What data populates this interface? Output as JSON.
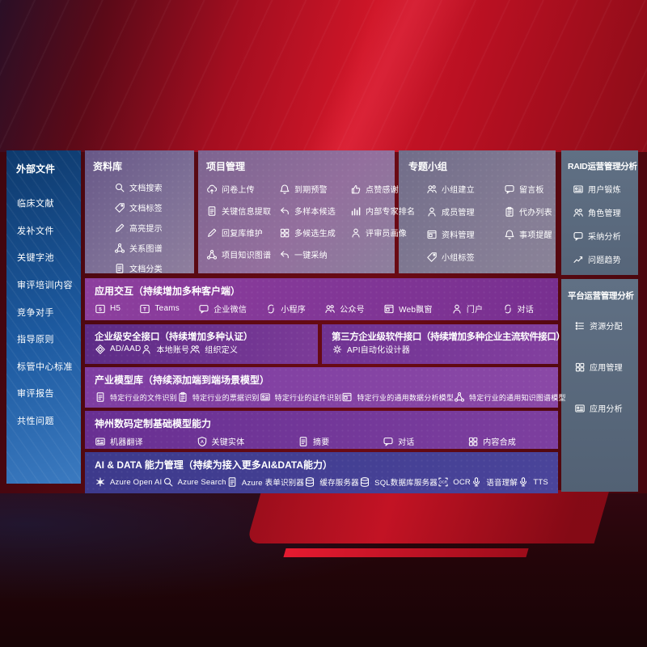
{
  "colors": {
    "background_red": "#c11226",
    "sidebar_blue": "#1d5aa0",
    "panel_mauve": "#7d6f96",
    "panel_slate": "#5d6d82",
    "panel_purple": "#7c3794",
    "panel_indigo": "#3f3b8e"
  },
  "sidebar": {
    "title": "外部文件",
    "items": [
      "临床文献",
      "发补文件",
      "关键字池",
      "审评培训内容",
      "竞争对手",
      "指导原则",
      "标管中心标准",
      "审评报告",
      "共性问题"
    ]
  },
  "panels": {
    "library": {
      "title": "资料库",
      "items": [
        {
          "label": "文档搜索",
          "icon": "doc-search-icon"
        },
        {
          "label": "文档标签",
          "icon": "tag-icon"
        },
        {
          "label": "高亮提示",
          "icon": "highlight-pen-icon"
        },
        {
          "label": "关系图谱",
          "icon": "relation-graph-icon"
        },
        {
          "label": "文档分类",
          "icon": "document-category-icon"
        }
      ]
    },
    "project": {
      "title": "项目管理",
      "items": [
        {
          "label": "问卷上传",
          "icon": "cloud-upload-icon"
        },
        {
          "label": "到期预警",
          "icon": "alarm-icon"
        },
        {
          "label": "点赞感谢",
          "icon": "thumbs-up-icon"
        },
        {
          "label": "关键信息提取",
          "icon": "key-info-extract-icon"
        },
        {
          "label": "多样本候选",
          "icon": "multi-sample-icon"
        },
        {
          "label": "内部专家排名",
          "icon": "expert-ranking-icon"
        },
        {
          "label": "回复库维护",
          "icon": "reply-library-icon"
        },
        {
          "label": "多候选生成",
          "icon": "multi-candidate-icon"
        },
        {
          "label": "评审员画像",
          "icon": "reviewer-profile-icon"
        },
        {
          "label": "项目知识图谱",
          "icon": "project-knowledge-graph-icon"
        },
        {
          "label": "一键采纳",
          "icon": "one-click-adopt-icon"
        }
      ]
    },
    "groups": {
      "title": "专题小组",
      "items": [
        {
          "label": "小组建立",
          "icon": "team-create-icon"
        },
        {
          "label": "留言板",
          "icon": "bbs-board-icon"
        },
        {
          "label": "成员管理",
          "icon": "member-manage-icon"
        },
        {
          "label": "代办列表",
          "icon": "todo-list-icon"
        },
        {
          "label": "资料管理",
          "icon": "material-manage-icon"
        },
        {
          "label": "事项提醒",
          "icon": "reminder-bell-icon"
        },
        {
          "label": "小组标签",
          "icon": "group-tag-icon"
        }
      ]
    },
    "raid": {
      "title": "RAID运营管理分析",
      "items": [
        {
          "label": "用户锻炼",
          "icon": "user-card-icon"
        },
        {
          "label": "角色管理",
          "icon": "role-manage-icon"
        },
        {
          "label": "采纳分析",
          "icon": "qa-analysis-icon"
        },
        {
          "label": "问题趋势",
          "icon": "issue-trend-icon"
        }
      ]
    },
    "platform": {
      "title": "平台运营管理分析",
      "items": [
        {
          "label": "资源分配",
          "icon": "resource-list-icon"
        },
        {
          "label": "应用管理",
          "icon": "app-grid-icon"
        },
        {
          "label": "应用分析",
          "icon": "app-report-icon"
        }
      ]
    },
    "interaction": {
      "title": "应用交互（持续增加多种客户端）",
      "items": [
        {
          "label": "H5",
          "icon": "h5-icon"
        },
        {
          "label": "Teams",
          "icon": "teams-icon"
        },
        {
          "label": "企业微信",
          "icon": "wechat-work-icon"
        },
        {
          "label": "小程序",
          "icon": "miniprogram-icon"
        },
        {
          "label": "公众号",
          "icon": "official-account-icon"
        },
        {
          "label": "Web飘窗",
          "icon": "web-popup-icon"
        },
        {
          "label": "门户",
          "icon": "portal-icon"
        },
        {
          "label": "对话",
          "icon": "dialog-icon"
        }
      ]
    },
    "security": {
      "title": "企业级安全接口（持续增加多种认证）",
      "items": [
        {
          "label": "AD/AAD",
          "icon": "azure-ad-icon"
        },
        {
          "label": "本地账号",
          "icon": "local-account-icon"
        },
        {
          "label": "组织定义",
          "icon": "org-define-icon"
        }
      ]
    },
    "thirdparty": {
      "title": "第三方企业级软件接口（持续增加多种企业主流软件接口）",
      "items": [
        {
          "label": "API自动化设计器",
          "icon": "api-designer-icon"
        }
      ]
    },
    "models": {
      "title": "产业模型库（持续添加端到端场景模型）",
      "items": [
        {
          "label": "特定行业的文件识别",
          "icon": "file-recognize-icon"
        },
        {
          "label": "特定行业的票据识别",
          "icon": "receipt-recognize-icon"
        },
        {
          "label": "特定行业的证件识别",
          "icon": "certificate-recognize-icon"
        },
        {
          "label": "特定行业的通用数据分析模型",
          "icon": "data-analysis-model-icon"
        },
        {
          "label": "特定行业的通用知识图谱模型",
          "icon": "knowledge-graph-model-icon"
        }
      ]
    },
    "foundation": {
      "title": "神州数码定制基础模型能力",
      "items": [
        {
          "label": "机器翻译",
          "icon": "translate-icon"
        },
        {
          "label": "关键实体",
          "icon": "entity-icon"
        },
        {
          "label": "摘要",
          "icon": "summary-icon"
        },
        {
          "label": "对话",
          "icon": "chat-icon"
        },
        {
          "label": "内容合成",
          "icon": "content-compose-icon"
        }
      ]
    },
    "aidata": {
      "title": "AI & DATA 能力管理（持续为接入更多AI&DATA能力）",
      "items": [
        {
          "label": "Azure Open AI",
          "icon": "openai-icon"
        },
        {
          "label": "Azure Search",
          "icon": "azure-search-icon"
        },
        {
          "label": "Azure 表单识别器",
          "icon": "form-recognizer-icon"
        },
        {
          "label": "缓存服务器",
          "icon": "cache-server-icon"
        },
        {
          "label": "SQL数据库服务器",
          "icon": "sql-db-icon"
        },
        {
          "label": "OCR",
          "icon": "ocr-icon"
        },
        {
          "label": "语音理解",
          "icon": "speech-understand-icon"
        },
        {
          "label": "TTS",
          "icon": "tts-icon"
        }
      ]
    }
  }
}
